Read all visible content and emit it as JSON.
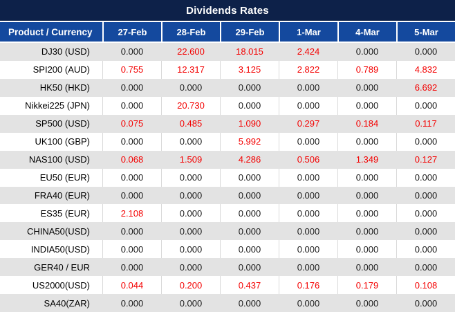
{
  "title": "Dividends Rates",
  "colors": {
    "title_bar_bg": "#0D2149",
    "header_bg": "#14499E",
    "row_alt_bg": "#E3E3E3",
    "row_bg": "#FFFFFF",
    "grid_line": "#D9D9D9",
    "value_zero_text": "#1A1A1A",
    "value_nonzero_text": "#F40000",
    "header_text": "#FFFFFF"
  },
  "table": {
    "columns": [
      "Product / Currency",
      "27-Feb",
      "28-Feb",
      "29-Feb",
      "1-Mar",
      "4-Mar",
      "5-Mar"
    ],
    "zero_value": "0.000",
    "rows": [
      {
        "product": "DJ30 (USD)",
        "values": [
          "0.000",
          "22.600",
          "18.015",
          "2.424",
          "0.000",
          "0.000"
        ]
      },
      {
        "product": "SPI200 (AUD)",
        "values": [
          "0.755",
          "12.317",
          "3.125",
          "2.822",
          "0.789",
          "4.832"
        ]
      },
      {
        "product": "HK50 (HKD)",
        "values": [
          "0.000",
          "0.000",
          "0.000",
          "0.000",
          "0.000",
          "6.692"
        ]
      },
      {
        "product": "Nikkei225 (JPN)",
        "values": [
          "0.000",
          "20.730",
          "0.000",
          "0.000",
          "0.000",
          "0.000"
        ]
      },
      {
        "product": "SP500 (USD)",
        "values": [
          "0.075",
          "0.485",
          "1.090",
          "0.297",
          "0.184",
          "0.117"
        ]
      },
      {
        "product": "UK100 (GBP)",
        "values": [
          "0.000",
          "0.000",
          "5.992",
          "0.000",
          "0.000",
          "0.000"
        ]
      },
      {
        "product": "NAS100 (USD)",
        "values": [
          "0.068",
          "1.509",
          "4.286",
          "0.506",
          "1.349",
          "0.127"
        ]
      },
      {
        "product": "EU50 (EUR)",
        "values": [
          "0.000",
          "0.000",
          "0.000",
          "0.000",
          "0.000",
          "0.000"
        ]
      },
      {
        "product": "FRA40 (EUR)",
        "values": [
          "0.000",
          "0.000",
          "0.000",
          "0.000",
          "0.000",
          "0.000"
        ]
      },
      {
        "product": "ES35 (EUR)",
        "values": [
          "2.108",
          "0.000",
          "0.000",
          "0.000",
          "0.000",
          "0.000"
        ]
      },
      {
        "product": "CHINA50(USD)",
        "values": [
          "0.000",
          "0.000",
          "0.000",
          "0.000",
          "0.000",
          "0.000"
        ]
      },
      {
        "product": "INDIA50(USD)",
        "values": [
          "0.000",
          "0.000",
          "0.000",
          "0.000",
          "0.000",
          "0.000"
        ]
      },
      {
        "product": "GER40 / EUR",
        "values": [
          "0.000",
          "0.000",
          "0.000",
          "0.000",
          "0.000",
          "0.000"
        ]
      },
      {
        "product": "US2000(USD)",
        "values": [
          "0.044",
          "0.200",
          "0.437",
          "0.176",
          "0.179",
          "0.108"
        ]
      },
      {
        "product": "SA40(ZAR)",
        "values": [
          "0.000",
          "0.000",
          "0.000",
          "0.000",
          "0.000",
          "0.000"
        ]
      }
    ]
  }
}
